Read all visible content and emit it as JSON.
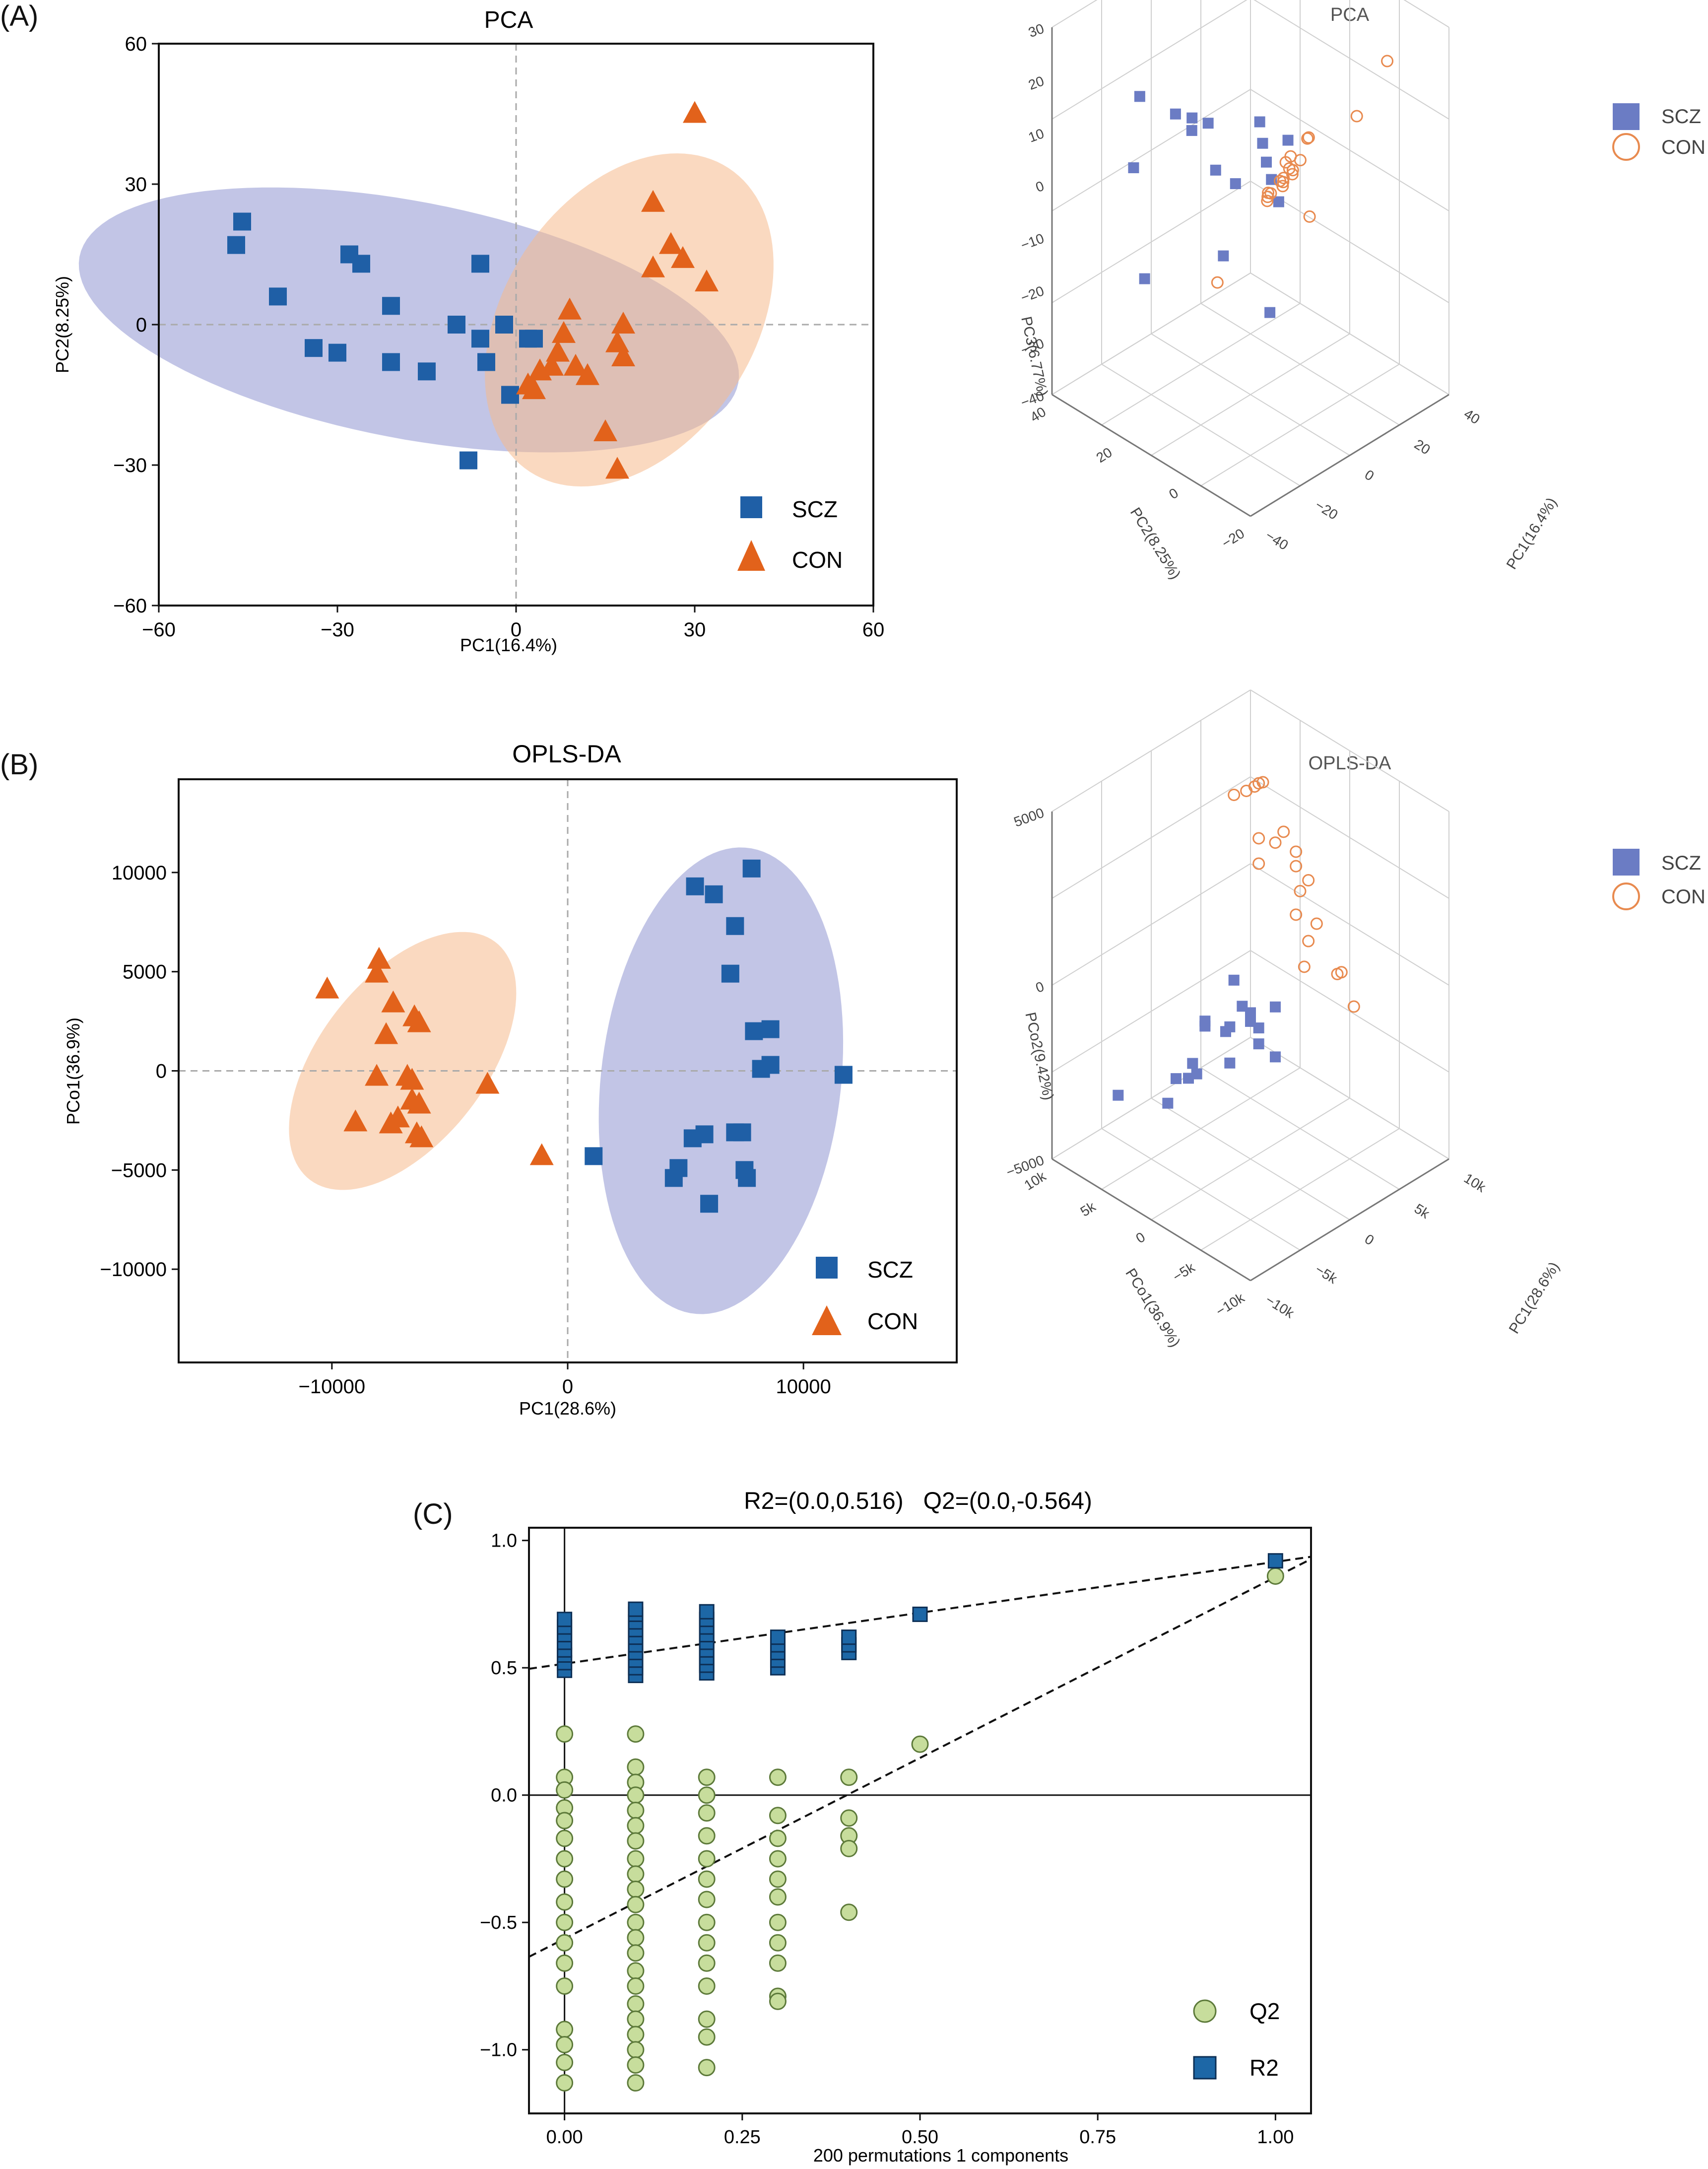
{
  "colors": {
    "scz": "#1f5fa6",
    "con": "#e2621b",
    "scz_ellipse": "#8f96d1",
    "con_ellipse": "#f5b98c",
    "scz_3d": "#6b7cc4",
    "con_3d": "#e88a4f",
    "q2_fill": "#c7dd9c",
    "q2_edge": "#5d7a3a",
    "r2_fill": "#1d67a6",
    "r2_edge": "#0d2f55"
  },
  "panels": {
    "a": {
      "label": "(A)"
    },
    "b": {
      "label": "(B)"
    },
    "c": {
      "label": "(C)"
    }
  },
  "chart_data": [
    {
      "id": "pca2d",
      "type": "scatter",
      "title": "PCA",
      "xlabel": "PC1(16.4%)",
      "ylabel": "PC2(8.25%)",
      "xlim": [
        -60,
        60
      ],
      "ylim": [
        -60,
        60
      ],
      "xticks": [
        -60,
        -30,
        0,
        30,
        60
      ],
      "yticks": [
        60,
        30,
        0,
        -30,
        -60
      ],
      "ellipses": [
        {
          "group": "SCZ",
          "center": [
            -18,
            1
          ],
          "radii": [
            57,
            25
          ],
          "angle_deg": -15
        },
        {
          "group": "CON",
          "center": [
            19,
            1
          ],
          "radii": [
            37,
            22
          ],
          "angle_deg": 70
        }
      ],
      "series": [
        {
          "name": "SCZ",
          "marker": "square",
          "x": [
            -46,
            -47,
            -40,
            -34,
            -30,
            -28,
            -26,
            -21,
            -21,
            -15,
            -10,
            -6,
            -6,
            -5,
            -2,
            -1,
            2,
            3,
            -8
          ],
          "y": [
            22,
            17,
            6,
            -5,
            -6,
            15,
            13,
            4,
            -8,
            -10,
            0,
            13,
            -3,
            -8,
            0,
            -15,
            -3,
            -3,
            -29
          ]
        },
        {
          "name": "CON",
          "marker": "triangle",
          "x": [
            30,
            23,
            26,
            28,
            23,
            32,
            18,
            17,
            18,
            9,
            8,
            7,
            6,
            4,
            3,
            10,
            12,
            15,
            17,
            2
          ],
          "y": [
            45,
            26,
            17,
            14,
            12,
            9,
            0,
            -4,
            -7,
            3,
            -2,
            -6,
            -9,
            -10,
            -14,
            -9,
            -11,
            -23,
            -31,
            -13
          ]
        }
      ],
      "legend": {
        "entries": [
          "SCZ",
          "CON"
        ],
        "placement": "lower-right"
      }
    },
    {
      "id": "pca3d",
      "type": "scatter3d",
      "title": "PCA",
      "xlabel": "PC1(16.4%)",
      "ylabel": "PC2(8.25%)",
      "zlabel": "PC3(6.77%)",
      "x_ticks": [
        "-40",
        "-20",
        "0",
        "20",
        "40"
      ],
      "y_ticks": [
        "-20",
        "0",
        "20",
        "40"
      ],
      "z_ticks": [
        "30",
        "20",
        "10",
        "0",
        "-10",
        "-20",
        "-30",
        "-40"
      ],
      "legend": {
        "entries": [
          "SCZ",
          "CON"
        ],
        "placement": "top-right"
      },
      "series": [
        {
          "name": "SCZ",
          "marker": "square",
          "x": [
            -42,
            -44,
            -20,
            -35,
            -30,
            -12,
            -28,
            -18,
            -5,
            -40,
            -8,
            5,
            -2,
            8,
            -18,
            -30,
            3
          ],
          "y": [
            -40,
            -8,
            -30,
            0,
            12,
            -10,
            30,
            8,
            -5,
            22,
            -15,
            0,
            10,
            28,
            -20,
            26,
            20
          ],
          "z": [
            30,
            28,
            26,
            26,
            22,
            22,
            20,
            18,
            14,
            10,
            5,
            2,
            0,
            -5,
            -15,
            -18,
            -20
          ]
        },
        {
          "name": "CON",
          "marker": "circle",
          "x": [
            30,
            28,
            12,
            8,
            10,
            14,
            18,
            20,
            10,
            12,
            14,
            18,
            16,
            20,
            22,
            24,
            24,
            26,
            22,
            0
          ],
          "y": [
            -30,
            -18,
            -10,
            -6,
            -2,
            0,
            2,
            4,
            6,
            8,
            10,
            12,
            6,
            8,
            10,
            12,
            4,
            2,
            -2,
            20
          ],
          "z": [
            30,
            15,
            12,
            8,
            5,
            2,
            0,
            -2,
            -4,
            -6,
            -8,
            -8,
            -3,
            -4,
            -6,
            -8,
            0,
            5,
            -10,
            -25
          ]
        }
      ]
    },
    {
      "id": "oplsda2d",
      "type": "scatter",
      "title": "OPLS-DA",
      "xlabel": "PC1(28.6%)",
      "ylabel": "PCo1(36.9%)",
      "xlim": [
        -16500,
        16500
      ],
      "ylim": [
        -14700,
        14700
      ],
      "xticks": [
        -10000,
        0,
        10000
      ],
      "yticks": [
        10000,
        5000,
        0,
        -5000,
        -10000
      ],
      "ellipses": [
        {
          "group": "SCZ",
          "center": [
            6500,
            -500
          ],
          "radii": [
            11800,
            5100
          ],
          "angle_deg": 85
        },
        {
          "group": "CON",
          "center": [
            -7000,
            500
          ],
          "radii": [
            7200,
            3700
          ],
          "angle_deg": 60
        }
      ],
      "series": [
        {
          "name": "SCZ",
          "marker": "square",
          "x": [
            7800,
            5400,
            6200,
            7100,
            6900,
            8600,
            7900,
            8600,
            8200,
            11700,
            7400,
            7100,
            5800,
            5300,
            4700,
            4500,
            7500,
            7600,
            6000,
            1100
          ],
          "y": [
            10200,
            9300,
            8900,
            7300,
            4900,
            2100,
            2000,
            300,
            100,
            -200,
            -3100,
            -3100,
            -3200,
            -3400,
            -4900,
            -5400,
            -5000,
            -5400,
            -6700,
            -4300
          ]
        },
        {
          "name": "CON",
          "marker": "triangle",
          "x": [
            -8000,
            -8100,
            -10200,
            -7400,
            -6500,
            -6300,
            -7700,
            -8100,
            -6800,
            -6600,
            -6600,
            -6300,
            -3400,
            -9000,
            -7500,
            -7200,
            -6400,
            -6200,
            -1100
          ],
          "y": [
            5600,
            4900,
            4100,
            3400,
            2700,
            2400,
            1800,
            -300,
            -300,
            -500,
            -1500,
            -1700,
            -700,
            -2600,
            -2700,
            -2400,
            -3200,
            -3400,
            -4300
          ]
        }
      ],
      "legend": {
        "entries": [
          "SCZ",
          "CON"
        ],
        "placement": "lower-right"
      }
    },
    {
      "id": "oplsda3d",
      "type": "scatter3d",
      "title": "OPLS-DA",
      "xlabel": "PC1(28.6%)",
      "ylabel": "PCo1(36.9%)",
      "zlabel": "PCo2(9.42%)",
      "x_ticks": [
        "-10k",
        "-5k",
        "0",
        "5k",
        "10k"
      ],
      "y_ticks": [
        "-10k",
        "-5k",
        "0",
        "5k",
        "10k"
      ],
      "z_ticks": [
        "5000",
        "0",
        "-5000"
      ],
      "legend": {
        "entries": [
          "SCZ",
          "CON"
        ],
        "placement": "top-right"
      },
      "series": [
        {
          "name": "SCZ",
          "marker": "square",
          "x": [
            -9000,
            -8000,
            -7000,
            -9500,
            -8500,
            -7500,
            -6000,
            -5000,
            -4000,
            -3000,
            -2000,
            -8000,
            -9000,
            -6500,
            -1000,
            -4500,
            -7000,
            -2500,
            -6000
          ],
          "y": [
            -8000,
            -6000,
            -7000,
            -4000,
            -3000,
            -5000,
            -9000,
            -2000,
            -4000,
            -6000,
            -3000,
            -1000,
            0,
            1000,
            -2000,
            2000,
            3000,
            0,
            10000
          ],
          "z": [
            3000,
            3500,
            2000,
            1500,
            800,
            1000,
            2500,
            -500,
            200,
            -1200,
            -800,
            -1500,
            -2200,
            -3000,
            -2000,
            -3500,
            -4500,
            -3000,
            -6000
          ]
        },
        {
          "name": "CON",
          "marker": "circle",
          "x": [
            6000,
            6500,
            7000,
            7500,
            8000,
            6000,
            5000,
            7000,
            9000,
            8500,
            9500,
            8000,
            6500,
            10000,
            9000,
            7000,
            5500,
            8500,
            10000,
            9500
          ],
          "y": [
            8000,
            7000,
            6500,
            6000,
            7000,
            5000,
            4000,
            4000,
            5000,
            3000,
            4000,
            2000,
            1000,
            3000,
            1000,
            0,
            -1000,
            -2000,
            -1000,
            -3000
          ],
          "z": [
            5500,
            5800,
            6000,
            6200,
            5800,
            4200,
            3500,
            4000,
            3800,
            2800,
            3000,
            2000,
            1500,
            1800,
            500,
            400,
            -200,
            -1000,
            -1500,
            -2500
          ]
        }
      ]
    },
    {
      "id": "permutation",
      "type": "scatter",
      "title": "R2=(0.0,0.516)   Q2=(0.0,-0.564)",
      "xlabel": "200 permutations 1 components",
      "ylabel": "",
      "xlim": [
        -0.05,
        1.05
      ],
      "ylim": [
        -1.25,
        1.05
      ],
      "xticks": [
        "0.00",
        "0.25",
        "0.50",
        "0.75",
        "1.00"
      ],
      "yticks": [
        "1.0",
        "0.5",
        "0.0",
        "-0.5",
        "-1.0"
      ],
      "r2_line": {
        "intercept": 0.516,
        "slope": 0.4
      },
      "q2_line": {
        "intercept": -0.564,
        "slope": 1.42
      },
      "r2_columns": [
        {
          "x": 0.0,
          "values": [
            0.49,
            0.52,
            0.55,
            0.57,
            0.6,
            0.63,
            0.66,
            0.69
          ]
        },
        {
          "x": 0.1,
          "values": [
            0.47,
            0.5,
            0.53,
            0.56,
            0.59,
            0.62,
            0.65,
            0.68,
            0.71,
            0.73
          ]
        },
        {
          "x": 0.2,
          "values": [
            0.48,
            0.51,
            0.54,
            0.57,
            0.6,
            0.63,
            0.66,
            0.69,
            0.72
          ]
        },
        {
          "x": 0.3,
          "values": [
            0.5,
            0.53,
            0.56,
            0.59,
            0.62
          ]
        },
        {
          "x": 0.4,
          "values": [
            0.56,
            0.59,
            0.62
          ]
        },
        {
          "x": 0.5,
          "values": [
            0.71
          ]
        },
        {
          "x": 1.0,
          "values": [
            0.92
          ]
        }
      ],
      "q2_columns": [
        {
          "x": 0.0,
          "values": [
            0.24,
            0.07,
            0.02,
            -0.05,
            -0.1,
            -0.17,
            -0.25,
            -0.33,
            -0.42,
            -0.5,
            -0.58,
            -0.66,
            -0.75,
            -0.92,
            -0.98,
            -1.05,
            -1.13
          ]
        },
        {
          "x": 0.1,
          "values": [
            0.24,
            0.11,
            0.05,
            0.0,
            -0.06,
            -0.12,
            -0.18,
            -0.25,
            -0.31,
            -0.37,
            -0.43,
            -0.5,
            -0.56,
            -0.62,
            -0.69,
            -0.75,
            -0.82,
            -0.88,
            -0.94,
            -1.0,
            -1.06,
            -1.13
          ]
        },
        {
          "x": 0.2,
          "values": [
            0.07,
            0.0,
            -0.07,
            -0.16,
            -0.25,
            -0.33,
            -0.41,
            -0.5,
            -0.58,
            -0.66,
            -0.75,
            -0.88,
            -0.95,
            -1.07
          ]
        },
        {
          "x": 0.3,
          "values": [
            0.07,
            -0.08,
            -0.17,
            -0.25,
            -0.33,
            -0.4,
            -0.5,
            -0.58,
            -0.66,
            -0.79,
            -0.81
          ]
        },
        {
          "x": 0.4,
          "values": [
            0.07,
            -0.09,
            -0.16,
            -0.21,
            -0.46
          ]
        },
        {
          "x": 0.5,
          "values": [
            0.2
          ]
        },
        {
          "x": 1.0,
          "values": [
            0.86
          ]
        }
      ],
      "legend": {
        "entries": [
          "Q2",
          "R2"
        ],
        "placement": "lower-right"
      }
    }
  ]
}
